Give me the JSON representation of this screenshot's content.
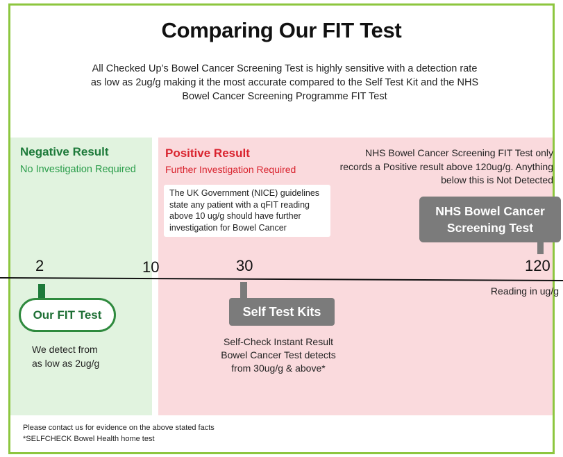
{
  "title": "Comparing Our FIT Test",
  "intro": "All Checked Up’s  Bowel Cancer Screening Test is highly sensitive with a detection rate as low as 2ug/g making it the most accurate compared to the Self Test Kit and the NHS Bowel Cancer Screening Programme FIT Test",
  "negative": {
    "title": "Negative Result",
    "subtitle": "No Investigation Required",
    "color": "#1d7a3a"
  },
  "positive": {
    "title": "Positive Result",
    "subtitle": "Further Investigation Required",
    "color": "#d9232e"
  },
  "nice_note": "The UK Government (NICE) guidelines state any patient with a qFIT reading above 10 ug/g should have further investigation for Bowel Cancer",
  "nhs_note": "NHS Bowel Cancer Screening FIT Test only records a Positive result above 120ug/g. Anything below this is Not Detected",
  "nhs_badge": {
    "line1": "NHS Bowel Cancer",
    "line2": "Screening Test"
  },
  "scale": {
    "ticks": [
      "2",
      "10",
      "30",
      "120"
    ],
    "unit_label": "Reading in ug/g"
  },
  "our_fit": {
    "label": "Our FIT Test",
    "desc_line1": "We detect from",
    "desc_line2": "as low as 2ug/g"
  },
  "self_test": {
    "label": "Self Test Kits",
    "desc_line1": "Self-Check Instant Result",
    "desc_line2": "Bowel Cancer Test detects",
    "desc_line3": "from 30ug/g & above*"
  },
  "footer": {
    "line1": "Please contact us for evidence on the above stated facts",
    "line2": "*SELFCHECK Bowel Health home test"
  },
  "colors": {
    "border": "#8dc63f",
    "negative_zone": "#e1f3df",
    "positive_zone": "#fadadd",
    "badge_grey": "#7b7b7b"
  }
}
